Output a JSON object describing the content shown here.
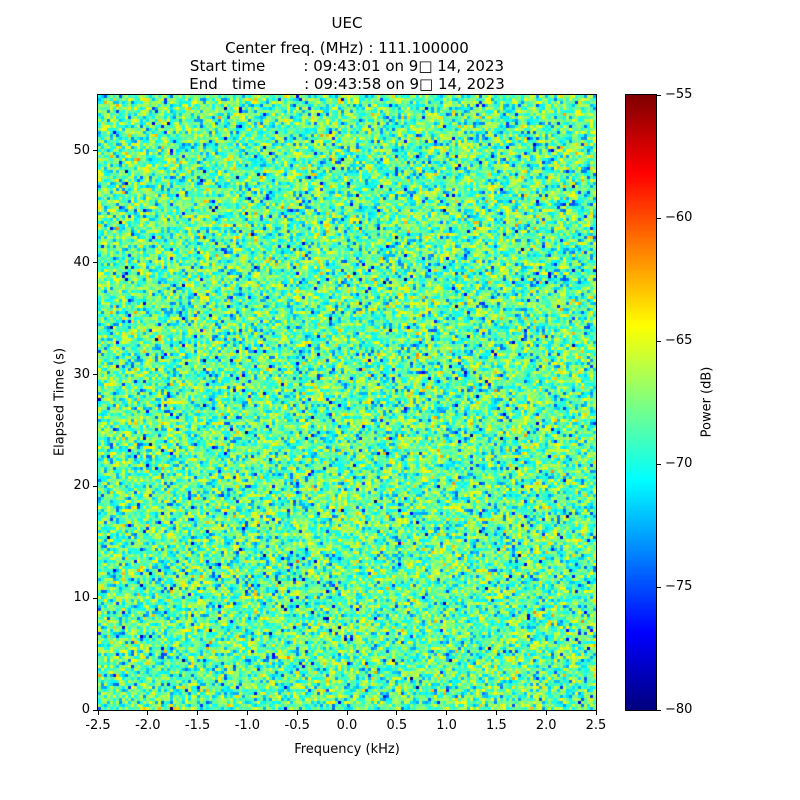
{
  "chart_data": {
    "type": "heatmap",
    "title": "UEC",
    "annotations": [
      "Center freq. (MHz) : 111.100000",
      "Start time        : 09:43:01 on 9□ 14, 2023",
      "End   time        : 09:43:58 on 9□ 14, 2023"
    ],
    "xlabel": "Frequency (kHz)",
    "ylabel": "Elapsed Time (s)",
    "xlim": [
      -2.5,
      2.5
    ],
    "ylim": [
      0,
      55
    ],
    "xtick_values": [
      -2.5,
      -2.0,
      -1.5,
      -1.0,
      -0.5,
      0.0,
      0.5,
      1.0,
      1.5,
      2.0,
      2.5
    ],
    "xtick_labels": [
      "-2.5",
      "-2.0",
      "-1.5",
      "-1.0",
      "-0.5",
      "0.0",
      "0.5",
      "1.0",
      "1.5",
      "2.0",
      "2.5"
    ],
    "ytick_values": [
      0,
      10,
      20,
      30,
      40,
      50
    ],
    "ytick_labels": [
      "0",
      "10",
      "20",
      "30",
      "40",
      "50"
    ],
    "colorbar": {
      "label": "Power (dB)",
      "vmin": -80,
      "vmax": -55,
      "tick_values": [
        -55,
        -60,
        -65,
        -70,
        -75,
        -80
      ],
      "tick_labels": [
        "−55",
        "−60",
        "−65",
        "−70",
        "−75",
        "−80"
      ],
      "colormap": "jet"
    },
    "content": "broadband random noise spectrogram, no visible narrowband signal; typical power −70 to −65 dB with sparse blue (−75 dB) and yellow-orange (−62 dB) speckles",
    "noise_model": {
      "seed": 1234567,
      "cols": 166,
      "rows": 205,
      "base_db": -67.8,
      "averages": 3
    }
  }
}
